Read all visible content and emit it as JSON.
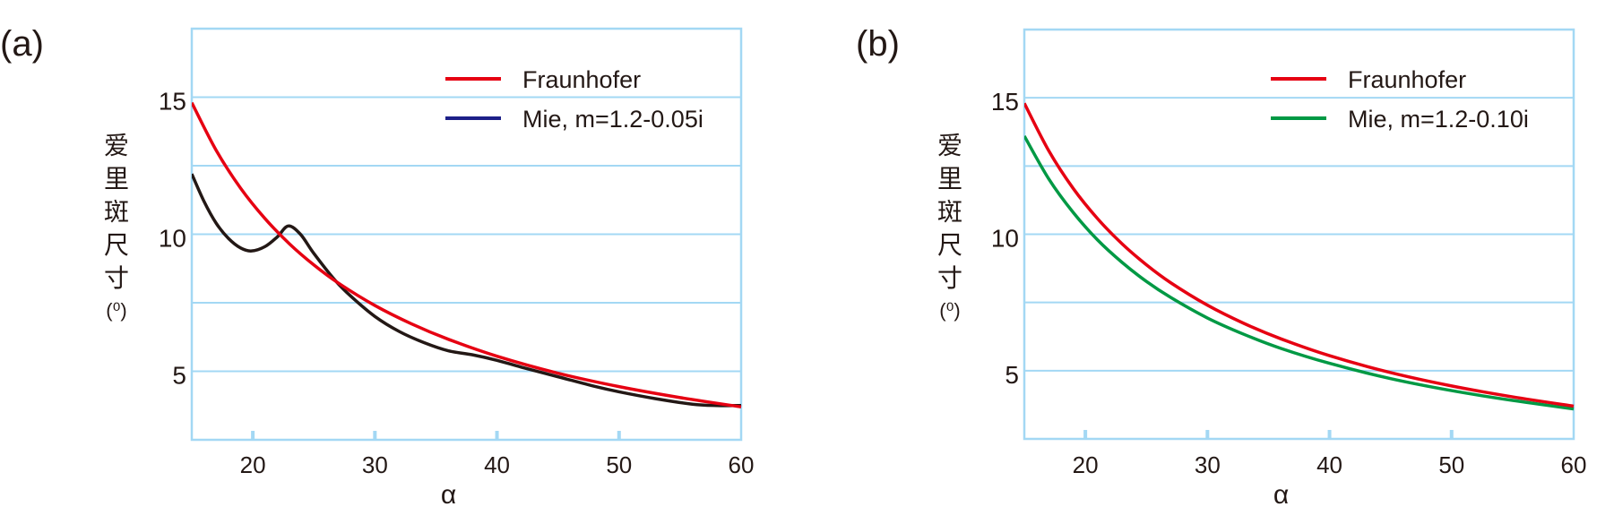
{
  "chart_data": [
    {
      "type": "line",
      "panel_label": "(a)",
      "xlabel": "α",
      "ylabel_chars": [
        "爱",
        "里",
        "斑",
        "尺",
        "寸"
      ],
      "ylabel_unit": "(⁰)",
      "xlim": [
        15,
        60
      ],
      "ylim": [
        2.5,
        17.5
      ],
      "xticks": [
        20,
        30,
        40,
        50,
        60
      ],
      "xtick_labels": [
        "20",
        "30",
        "40",
        "50",
        "60"
      ],
      "yticks": [
        5,
        10,
        15
      ],
      "ytick_labels": [
        "5",
        "10",
        "15"
      ],
      "gridlines_y": [
        5,
        7.5,
        10,
        12.5,
        15
      ],
      "grid": true,
      "legend_position": "top-right",
      "series": [
        {
          "name": "Fraunhofer",
          "color": "#e60012",
          "legend_color": "#e60012",
          "x": [
            15,
            17,
            19,
            21,
            23,
            25,
            27,
            30,
            33,
            36,
            40,
            45,
            50,
            55,
            60
          ],
          "y": [
            14.8,
            13.06,
            11.68,
            10.57,
            9.65,
            8.88,
            8.22,
            7.4,
            6.73,
            6.17,
            5.55,
            4.93,
            4.44,
            4.04,
            3.7
          ]
        },
        {
          "name": "Mie, m=1.2-0.05i",
          "color": "#231815",
          "legend_color": "#1d2088",
          "x": [
            15,
            16,
            17,
            18,
            19,
            19.9,
            21,
            22,
            22.9,
            23.9,
            25,
            26.7,
            28,
            30,
            32,
            34,
            36,
            38,
            40,
            42,
            45,
            48,
            50,
            53,
            56,
            58,
            60
          ],
          "y": [
            12.2,
            11.2,
            10.4,
            9.85,
            9.5,
            9.39,
            9.55,
            9.9,
            10.3,
            10.0,
            9.3,
            8.34,
            7.75,
            7.0,
            6.45,
            6.05,
            5.75,
            5.6,
            5.4,
            5.15,
            4.8,
            4.45,
            4.25,
            4.0,
            3.8,
            3.75,
            3.75
          ]
        }
      ]
    },
    {
      "type": "line",
      "panel_label": "(b)",
      "xlabel": "α",
      "ylabel_chars": [
        "爱",
        "里",
        "斑",
        "尺",
        "寸"
      ],
      "ylabel_unit": "(⁰)",
      "xlim": [
        15,
        60
      ],
      "ylim": [
        2.5,
        17.5
      ],
      "xticks": [
        20,
        30,
        40,
        50,
        60
      ],
      "xtick_labels": [
        "20",
        "30",
        "40",
        "50",
        "60"
      ],
      "yticks": [
        5,
        10,
        15
      ],
      "ytick_labels": [
        "5",
        "10",
        "15"
      ],
      "gridlines_y": [
        5,
        7.5,
        10,
        12.5,
        15
      ],
      "grid": true,
      "legend_position": "top-right",
      "series": [
        {
          "name": "Fraunhofer",
          "color": "#e60012",
          "legend_color": "#e60012",
          "x": [
            15,
            17,
            19,
            21,
            23,
            25,
            27,
            30,
            33,
            36,
            40,
            45,
            50,
            55,
            60
          ],
          "y": [
            14.8,
            13.06,
            11.68,
            10.57,
            9.65,
            8.88,
            8.22,
            7.4,
            6.73,
            6.17,
            5.55,
            4.93,
            4.44,
            4.04,
            3.7
          ]
        },
        {
          "name": "Mie, m=1.2-0.10i",
          "color": "#009944",
          "legend_color": "#009944",
          "x": [
            15,
            17,
            19,
            21,
            23,
            25,
            27,
            30,
            33,
            36,
            40,
            45,
            50,
            55,
            60
          ],
          "y": [
            13.6,
            12.03,
            10.8,
            9.79,
            8.97,
            8.27,
            7.68,
            6.93,
            6.33,
            5.82,
            5.27,
            4.71,
            4.27,
            3.91,
            3.6
          ]
        }
      ]
    }
  ]
}
